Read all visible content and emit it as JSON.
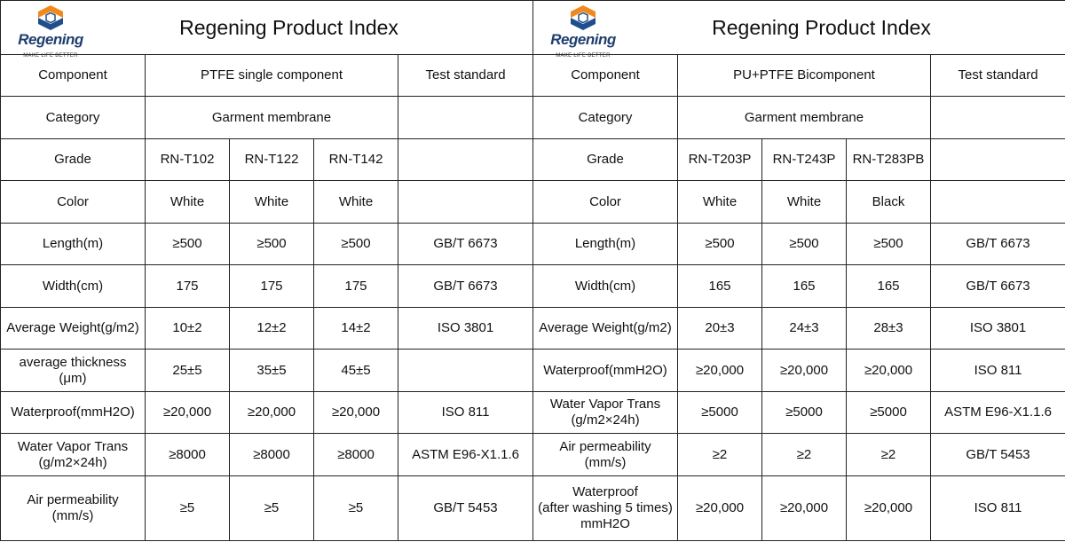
{
  "brand": {
    "name": "Regening",
    "tagline": "MAKE LIFE BETTER"
  },
  "left": {
    "title": "Regening Product Index",
    "component": "Component",
    "component_value": "PTFE single component",
    "test_standard": "Test standard",
    "category": "Category",
    "category_value": "Garment membrane",
    "grade": "Grade",
    "grades": [
      "RN-T102",
      "RN-T122",
      "RN-T142"
    ],
    "rows": [
      {
        "label": "Color",
        "values": [
          "White",
          "White",
          "White"
        ],
        "std": ""
      },
      {
        "label": "Length(m)",
        "values": [
          "≥500",
          "≥500",
          "≥500"
        ],
        "std": "GB/T 6673"
      },
      {
        "label": "Width(cm)",
        "values": [
          "175",
          "175",
          "175"
        ],
        "std": "GB/T 6673"
      },
      {
        "label": "Average Weight(g/m2)",
        "values": [
          "10±2",
          "12±2",
          "14±2"
        ],
        "std": "ISO 3801"
      },
      {
        "label": "average thickness\n(μm)",
        "values": [
          "25±5",
          "35±5",
          "45±5"
        ],
        "std": ""
      },
      {
        "label": "Waterproof(mmH2O)",
        "values": [
          "≥20,000",
          "≥20,000",
          "≥20,000"
        ],
        "std": "ISO 811"
      },
      {
        "label": "Water Vapor Trans\n(g/m2×24h)",
        "values": [
          "≥8000",
          "≥8000",
          "≥8000"
        ],
        "std": "ASTM E96-X1.1.6"
      },
      {
        "label": "Air permeability\n(mm/s)",
        "values": [
          "≥5",
          "≥5",
          "≥5"
        ],
        "std": "GB/T 5453"
      }
    ]
  },
  "right": {
    "title": "Regening Product Index",
    "component": "Component",
    "component_value": "PU+PTFE Bicomponent",
    "test_standard": "Test standard",
    "category": "Category",
    "category_value": "Garment membrane",
    "grade": "Grade",
    "grades": [
      "RN-T203P",
      "RN-T243P",
      "RN-T283PB"
    ],
    "rows": [
      {
        "label": "Color",
        "values": [
          "White",
          "White",
          "Black"
        ],
        "std": ""
      },
      {
        "label": "Length(m)",
        "values": [
          "≥500",
          "≥500",
          "≥500"
        ],
        "std": "GB/T 6673"
      },
      {
        "label": "Width(cm)",
        "values": [
          "165",
          "165",
          "165"
        ],
        "std": "GB/T 6673"
      },
      {
        "label": "Average Weight(g/m2)",
        "values": [
          "20±3",
          "24±3",
          "28±3"
        ],
        "std": "ISO 3801"
      },
      {
        "label": "Waterproof(mmH2O)",
        "values": [
          "≥20,000",
          "≥20,000",
          "≥20,000"
        ],
        "std": "ISO 811"
      },
      {
        "label": "Water Vapor Trans\n(g/m2×24h)",
        "values": [
          "≥5000",
          "≥5000",
          "≥5000"
        ],
        "std": "ASTM E96-X1.1.6"
      },
      {
        "label": "Air permeability\n(mm/s)",
        "values": [
          "≥2",
          "≥2",
          "≥2"
        ],
        "std": "GB/T 5453"
      },
      {
        "label": "Waterproof\n(after washing 5 times)\nmmH2O",
        "values": [
          "≥20,000",
          "≥20,000",
          "≥20,000"
        ],
        "std": "ISO 811"
      }
    ]
  },
  "colors": {
    "logo_orange": "#f08a1e",
    "logo_blue": "#1f4e8c",
    "brand_text": "#1f3f6e",
    "border": "#222222"
  }
}
